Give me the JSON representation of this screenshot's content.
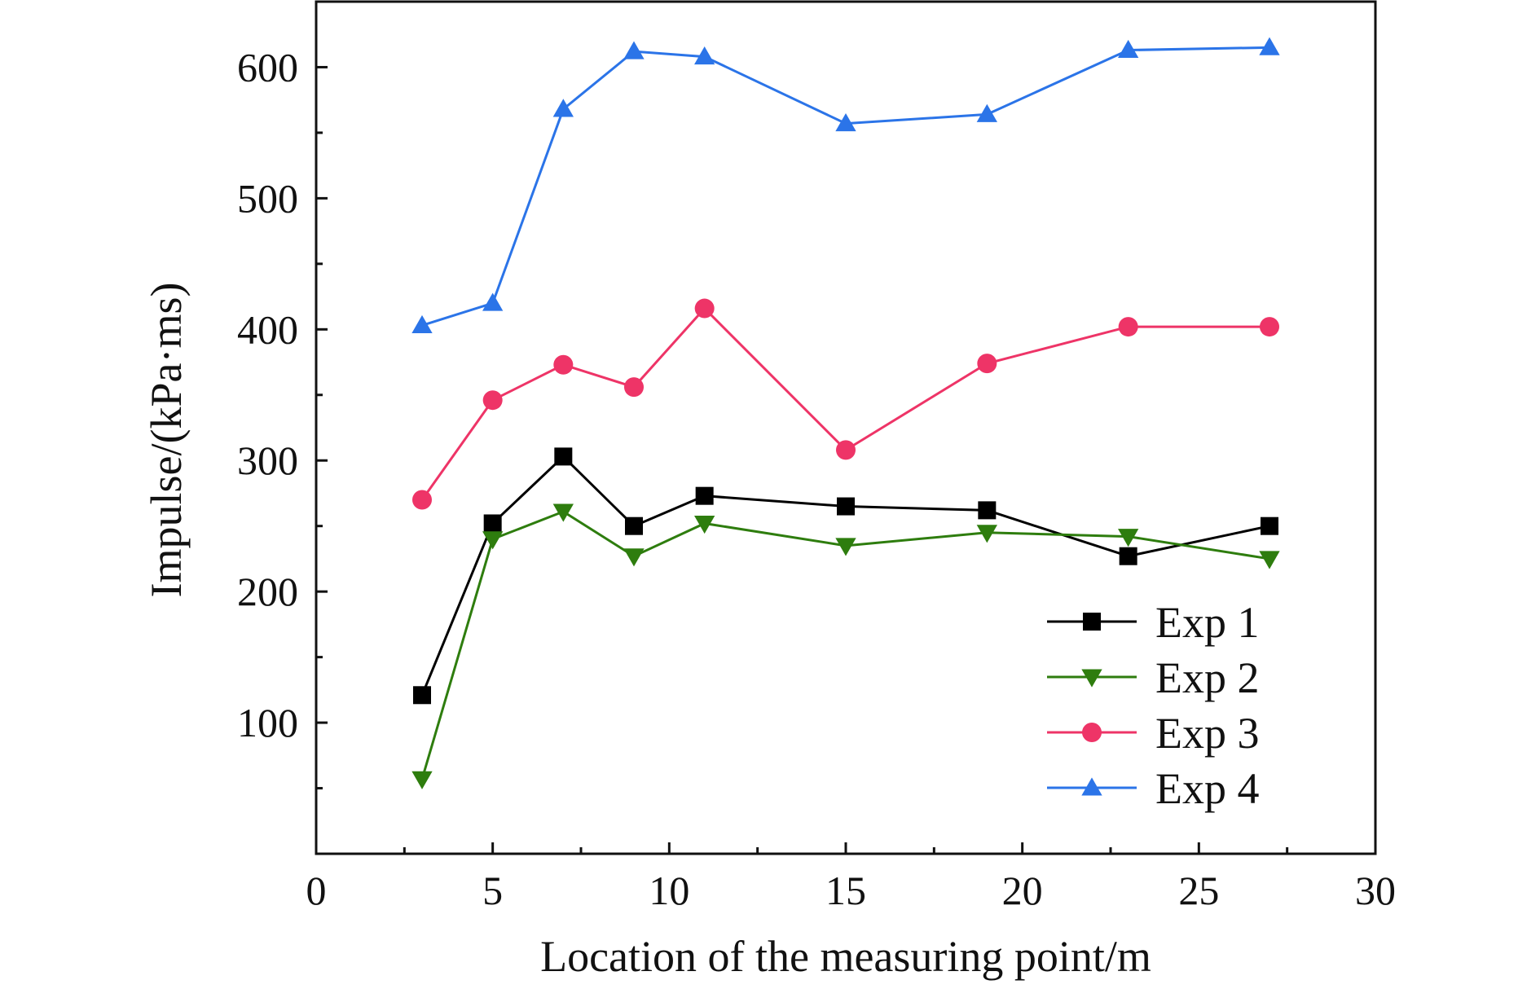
{
  "chart_data": {
    "type": "line",
    "title": "",
    "xlabel": "Location of the measuring point/m",
    "ylabel": "Impulse/(kPa·ms)",
    "xlim": [
      0,
      30
    ],
    "ylim": [
      0,
      650
    ],
    "x_ticks": [
      0,
      5,
      10,
      15,
      20,
      25,
      30
    ],
    "y_ticks": [
      100,
      200,
      300,
      400,
      500,
      600
    ],
    "x_tick_labels": [
      "0",
      "5",
      "10",
      "15",
      "20",
      "25",
      "30"
    ],
    "y_tick_labels": [
      "100",
      "200",
      "300",
      "400",
      "500",
      "600"
    ],
    "grid": false,
    "legend_position": "bottom-right",
    "x": [
      3,
      5,
      7,
      9,
      11,
      15,
      19,
      23,
      27
    ],
    "series": [
      {
        "name": "Exp 1",
        "color": "#000000",
        "marker": "square",
        "values": [
          121,
          252,
          303,
          250,
          273,
          265,
          262,
          227,
          250
        ]
      },
      {
        "name": "Exp 2",
        "color": "#2e7d0e",
        "marker": "triangle-down",
        "values": [
          57,
          240,
          261,
          227,
          252,
          235,
          245,
          242,
          225
        ]
      },
      {
        "name": "Exp 3",
        "color": "#ee3467",
        "marker": "circle",
        "values": [
          270,
          346,
          373,
          356,
          416,
          308,
          374,
          402,
          402
        ]
      },
      {
        "name": "Exp 4",
        "color": "#2b74e8",
        "marker": "triangle-up",
        "values": [
          403,
          420,
          568,
          612,
          608,
          557,
          564,
          613,
          615
        ]
      }
    ]
  }
}
